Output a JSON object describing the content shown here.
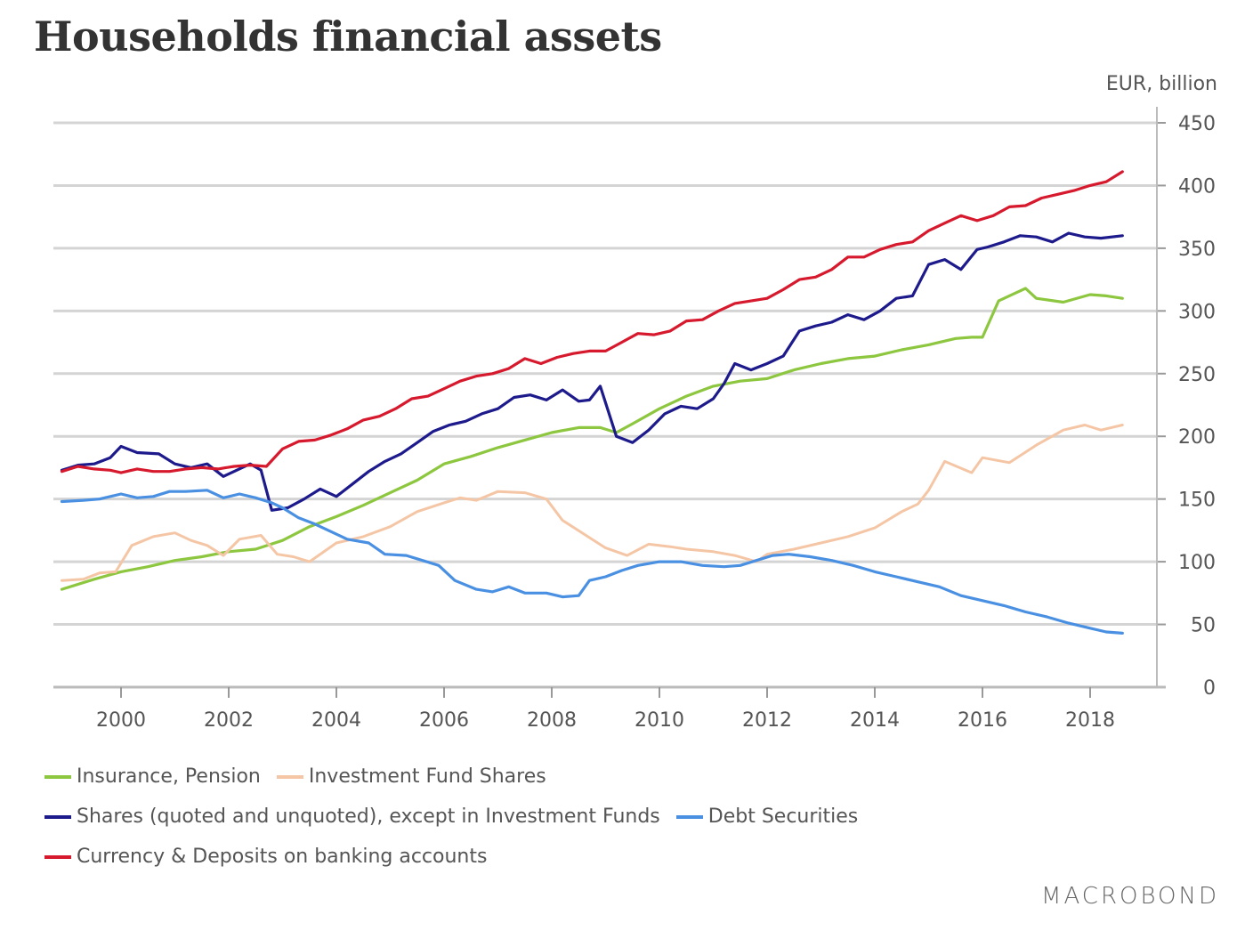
{
  "chart_data": {
    "type": "line",
    "title": "Households financial assets",
    "ylabel": "EUR, billion",
    "xlabel": "",
    "ylim": [
      0,
      450
    ],
    "xlim": [
      1998.8,
      2019.4
    ],
    "yticks": [
      0,
      50,
      100,
      150,
      200,
      250,
      300,
      350,
      400,
      450
    ],
    "xticks": [
      2000,
      2002,
      2004,
      2006,
      2008,
      2010,
      2012,
      2014,
      2016,
      2018
    ],
    "grid": true,
    "legend_position": "bottom",
    "source": "MACROBOND",
    "series": [
      {
        "name": "Insurance, Pension",
        "color": "#8dc63f",
        "x": [
          1998.9,
          1999.5,
          2000.0,
          2000.5,
          2001.0,
          2001.5,
          2002.0,
          2002.5,
          2003.0,
          2003.5,
          2004.0,
          2004.5,
          2005.0,
          2005.5,
          2006.0,
          2006.5,
          2007.0,
          2007.5,
          2008.0,
          2008.5,
          2008.9,
          2009.2,
          2009.5,
          2010.0,
          2010.5,
          2011.0,
          2011.5,
          2012.0,
          2012.5,
          2013.0,
          2013.5,
          2014.0,
          2014.5,
          2015.0,
          2015.5,
          2015.8,
          2016.0,
          2016.3,
          2016.8,
          2017.0,
          2017.5,
          2018.0,
          2018.3,
          2018.6
        ],
        "values": [
          78,
          86,
          92,
          96,
          101,
          104,
          108,
          110,
          117,
          128,
          136,
          145,
          155,
          165,
          178,
          184,
          191,
          197,
          203,
          207,
          207,
          203,
          210,
          222,
          232,
          240,
          244,
          246,
          253,
          258,
          262,
          264,
          269,
          273,
          278,
          279,
          279,
          308,
          318,
          310,
          307,
          313,
          312,
          310
        ]
      },
      {
        "name": "Investment Fund Shares",
        "color": "#f5c6a5",
        "x": [
          1998.9,
          1999.3,
          1999.6,
          1999.9,
          2000.2,
          2000.6,
          2001.0,
          2001.3,
          2001.6,
          2001.9,
          2002.2,
          2002.6,
          2002.9,
          2003.2,
          2003.5,
          2004.0,
          2004.5,
          2005.0,
          2005.5,
          2006.0,
          2006.3,
          2006.6,
          2007.0,
          2007.5,
          2007.9,
          2008.2,
          2008.6,
          2009.0,
          2009.4,
          2009.8,
          2010.2,
          2010.5,
          2011.0,
          2011.4,
          2011.8,
          2012.0,
          2012.5,
          2013.0,
          2013.5,
          2014.0,
          2014.5,
          2014.8,
          2015.0,
          2015.3,
          2015.8,
          2016.0,
          2016.5,
          2017.0,
          2017.5,
          2017.9,
          2018.2,
          2018.6
        ],
        "values": [
          85,
          86,
          91,
          92,
          113,
          120,
          123,
          117,
          113,
          105,
          118,
          121,
          106,
          104,
          100,
          115,
          120,
          128,
          140,
          147,
          151,
          149,
          156,
          155,
          150,
          133,
          122,
          111,
          105,
          114,
          112,
          110,
          108,
          105,
          100,
          106,
          110,
          115,
          120,
          127,
          140,
          146,
          157,
          180,
          171,
          183,
          179,
          193,
          205,
          209,
          205,
          209
        ]
      },
      {
        "name": "Shares (quoted and unquoted), except in Investment Funds",
        "color": "#1d1a8c",
        "x": [
          1998.9,
          1999.2,
          1999.5,
          1999.8,
          2000.0,
          2000.3,
          2000.7,
          2001.0,
          2001.3,
          2001.6,
          2001.9,
          2002.1,
          2002.4,
          2002.6,
          2002.8,
          2003.1,
          2003.4,
          2003.7,
          2004.0,
          2004.3,
          2004.6,
          2004.9,
          2005.2,
          2005.5,
          2005.8,
          2006.1,
          2006.4,
          2006.7,
          2007.0,
          2007.3,
          2007.6,
          2007.9,
          2008.2,
          2008.5,
          2008.7,
          2008.9,
          2009.2,
          2009.5,
          2009.8,
          2010.1,
          2010.4,
          2010.7,
          2011.0,
          2011.2,
          2011.4,
          2011.7,
          2012.0,
          2012.3,
          2012.6,
          2012.9,
          2013.2,
          2013.5,
          2013.8,
          2014.1,
          2014.4,
          2014.7,
          2015.0,
          2015.3,
          2015.6,
          2015.9,
          2016.1,
          2016.4,
          2016.7,
          2017.0,
          2017.3,
          2017.6,
          2017.9,
          2018.2,
          2018.6
        ],
        "values": [
          173,
          177,
          178,
          183,
          192,
          187,
          186,
          178,
          175,
          178,
          168,
          172,
          178,
          173,
          141,
          143,
          150,
          158,
          152,
          162,
          172,
          180,
          186,
          195,
          204,
          209,
          212,
          218,
          222,
          231,
          233,
          229,
          237,
          228,
          229,
          240,
          200,
          195,
          205,
          218,
          224,
          222,
          230,
          242,
          258,
          253,
          258,
          264,
          284,
          288,
          291,
          297,
          293,
          300,
          310,
          312,
          337,
          341,
          333,
          349,
          351,
          355,
          360,
          359,
          355,
          362,
          359,
          358,
          360
        ]
      },
      {
        "name": "Debt Securities",
        "color": "#4a90e2",
        "x": [
          1998.9,
          1999.3,
          1999.6,
          2000.0,
          2000.3,
          2000.6,
          2000.9,
          2001.2,
          2001.6,
          2001.9,
          2002.2,
          2002.5,
          2002.8,
          2003.0,
          2003.3,
          2003.6,
          2003.9,
          2004.2,
          2004.6,
          2004.9,
          2005.3,
          2005.6,
          2005.9,
          2006.2,
          2006.6,
          2006.9,
          2007.2,
          2007.5,
          2007.9,
          2008.2,
          2008.5,
          2008.7,
          2009.0,
          2009.3,
          2009.6,
          2010.0,
          2010.4,
          2010.8,
          2011.2,
          2011.5,
          2011.8,
          2012.1,
          2012.4,
          2012.8,
          2013.2,
          2013.6,
          2014.0,
          2014.4,
          2014.8,
          2015.2,
          2015.6,
          2016.0,
          2016.4,
          2016.8,
          2017.2,
          2017.6,
          2018.0,
          2018.3,
          2018.6
        ],
        "values": [
          148,
          149,
          150,
          154,
          151,
          152,
          156,
          156,
          157,
          151,
          154,
          151,
          147,
          143,
          135,
          130,
          124,
          118,
          115,
          106,
          105,
          101,
          97,
          85,
          78,
          76,
          80,
          75,
          75,
          72,
          73,
          85,
          88,
          93,
          97,
          100,
          100,
          97,
          96,
          97,
          101,
          105,
          106,
          104,
          101,
          97,
          92,
          88,
          84,
          80,
          73,
          69,
          65,
          60,
          56,
          51,
          47,
          44,
          43
        ]
      },
      {
        "name": "Currency & Deposits on banking accounts",
        "color": "#d7192d",
        "x": [
          1998.9,
          1999.2,
          1999.5,
          1999.8,
          2000.0,
          2000.3,
          2000.6,
          2000.9,
          2001.2,
          2001.5,
          2001.8,
          2002.1,
          2002.4,
          2002.7,
          2003.0,
          2003.3,
          2003.6,
          2003.9,
          2004.2,
          2004.5,
          2004.8,
          2005.1,
          2005.4,
          2005.7,
          2006.0,
          2006.3,
          2006.6,
          2006.9,
          2007.2,
          2007.5,
          2007.8,
          2008.1,
          2008.4,
          2008.7,
          2009.0,
          2009.3,
          2009.6,
          2009.9,
          2010.2,
          2010.5,
          2010.8,
          2011.1,
          2011.4,
          2011.7,
          2012.0,
          2012.3,
          2012.6,
          2012.9,
          2013.2,
          2013.5,
          2013.8,
          2014.1,
          2014.4,
          2014.7,
          2015.0,
          2015.3,
          2015.6,
          2015.9,
          2016.2,
          2016.5,
          2016.8,
          2017.1,
          2017.4,
          2017.7,
          2018.0,
          2018.3,
          2018.6
        ],
        "values": [
          172,
          176,
          174,
          173,
          171,
          174,
          172,
          172,
          174,
          175,
          174,
          176,
          177,
          176,
          190,
          196,
          197,
          201,
          206,
          213,
          216,
          222,
          230,
          232,
          238,
          244,
          248,
          250,
          254,
          262,
          258,
          263,
          266,
          268,
          268,
          275,
          282,
          281,
          284,
          292,
          293,
          300,
          306,
          308,
          310,
          317,
          325,
          327,
          333,
          343,
          343,
          349,
          353,
          355,
          364,
          370,
          376,
          372,
          376,
          383,
          384,
          390,
          393,
          396,
          400,
          403,
          411
        ]
      }
    ]
  },
  "legend": {
    "rows": [
      [
        0,
        1
      ],
      [
        2,
        3
      ],
      [
        4
      ]
    ]
  }
}
